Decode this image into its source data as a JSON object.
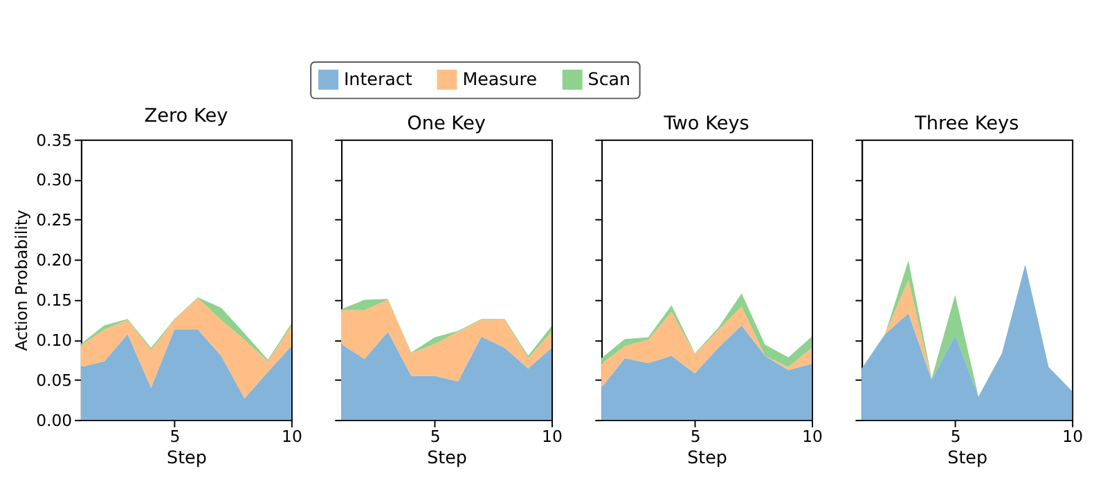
{
  "chart_data": [
    {
      "type": "area",
      "stacked": true,
      "title": "Zero Key",
      "xlabel": "Step",
      "ylabel": "Action Probability",
      "legend": "top",
      "grid": false,
      "x": [
        1,
        2,
        3,
        4,
        5,
        6,
        7,
        8,
        9,
        10
      ],
      "xlim": [
        1,
        10
      ],
      "xticks": [
        5,
        10
      ],
      "ylim": [
        0,
        0.35
      ],
      "yticks": [
        {
          "value": 0,
          "label": "0.00"
        },
        {
          "value": 0.05,
          "label": "0.05"
        },
        {
          "value": 0.1,
          "label": "0.10"
        },
        {
          "value": 0.15,
          "label": "0.15"
        },
        {
          "value": 0.2,
          "label": "0.20"
        },
        {
          "value": 0.25,
          "label": "0.25"
        },
        {
          "value": 0.3,
          "label": "0.30"
        },
        {
          "value": 0.35,
          "label": "0.35"
        }
      ],
      "series": [
        {
          "name": "Interact",
          "color": "#84b4d9",
          "values": [
            0.066,
            0.073,
            0.107,
            0.04,
            0.113,
            0.113,
            0.08,
            0.027,
            0.06,
            0.092
          ]
        },
        {
          "name": "Measure",
          "color": "#ffbe86",
          "values": [
            0.027,
            0.04,
            0.018,
            0.047,
            0.012,
            0.039,
            0.045,
            0.073,
            0.013,
            0.025
          ]
        },
        {
          "name": "Scan",
          "color": "#8fd18f",
          "values": [
            0.002,
            0.005,
            0.001,
            0.003,
            0.001,
            0.001,
            0.015,
            0.008,
            0.002,
            0.003
          ]
        }
      ]
    },
    {
      "type": "area",
      "stacked": true,
      "title": "One Key",
      "xlabel": "Step",
      "tick_labels": "x",
      "grid": false,
      "x": [
        1,
        2,
        3,
        4,
        5,
        6,
        7,
        8,
        9,
        10
      ],
      "xlim": [
        1,
        10
      ],
      "xticks": [
        5,
        10
      ],
      "ylim": [
        0,
        0.35
      ],
      "yticks": [
        {
          "value": 0,
          "label": null
        },
        {
          "value": 0.05,
          "label": null
        },
        {
          "value": 0.1,
          "label": null
        },
        {
          "value": 0.15,
          "label": null
        },
        {
          "value": 0.2,
          "label": null
        },
        {
          "value": 0.25,
          "label": null
        },
        {
          "value": 0.3,
          "label": null
        },
        {
          "value": 0.35,
          "label": null
        }
      ],
      "series": [
        {
          "name": "Interact",
          "color": "#84b4d9",
          "values": [
            0.095,
            0.076,
            0.11,
            0.055,
            0.055,
            0.048,
            0.104,
            0.09,
            0.064,
            0.09
          ]
        },
        {
          "name": "Measure",
          "color": "#ffbe86",
          "values": [
            0.042,
            0.061,
            0.04,
            0.028,
            0.04,
            0.062,
            0.021,
            0.035,
            0.013,
            0.02
          ]
        },
        {
          "name": "Scan",
          "color": "#8fd18f",
          "values": [
            0.001,
            0.013,
            0.001,
            0.001,
            0.008,
            0.001,
            0.001,
            0.001,
            0.003,
            0.007
          ]
        }
      ]
    },
    {
      "type": "area",
      "stacked": true,
      "title": "Two Keys",
      "xlabel": "Step",
      "tick_labels": "x",
      "grid": false,
      "x": [
        1,
        2,
        3,
        4,
        5,
        6,
        7,
        8,
        9,
        10
      ],
      "xlim": [
        1,
        10
      ],
      "xticks": [
        5,
        10
      ],
      "ylim": [
        0,
        0.35
      ],
      "yticks": [
        {
          "value": 0,
          "label": null
        },
        {
          "value": 0.05,
          "label": null
        },
        {
          "value": 0.1,
          "label": null
        },
        {
          "value": 0.15,
          "label": null
        },
        {
          "value": 0.2,
          "label": null
        },
        {
          "value": 0.25,
          "label": null
        },
        {
          "value": 0.3,
          "label": null
        },
        {
          "value": 0.35,
          "label": null
        }
      ],
      "series": [
        {
          "name": "Interact",
          "color": "#84b4d9",
          "values": [
            0.04,
            0.077,
            0.071,
            0.08,
            0.058,
            0.09,
            0.118,
            0.08,
            0.062,
            0.07
          ]
        },
        {
          "name": "Measure",
          "color": "#ffbe86",
          "values": [
            0.03,
            0.015,
            0.029,
            0.055,
            0.024,
            0.022,
            0.024,
            0.0,
            0.004,
            0.02
          ]
        },
        {
          "name": "Scan",
          "color": "#8fd18f",
          "values": [
            0.007,
            0.009,
            0.003,
            0.008,
            0.001,
            0.003,
            0.016,
            0.014,
            0.012,
            0.014
          ]
        }
      ]
    },
    {
      "type": "area",
      "stacked": true,
      "title": "Three Keys",
      "xlabel": "Step",
      "tick_labels": "x",
      "grid": false,
      "x": [
        1,
        2,
        3,
        4,
        5,
        6,
        7,
        8,
        9,
        10
      ],
      "xlim": [
        1,
        10
      ],
      "xticks": [
        5,
        10
      ],
      "ylim": [
        0,
        0.35
      ],
      "yticks": [
        {
          "value": 0,
          "label": null
        },
        {
          "value": 0.05,
          "label": null
        },
        {
          "value": 0.1,
          "label": null
        },
        {
          "value": 0.15,
          "label": null
        },
        {
          "value": 0.2,
          "label": null
        },
        {
          "value": 0.25,
          "label": null
        },
        {
          "value": 0.3,
          "label": null
        },
        {
          "value": 0.35,
          "label": null
        }
      ],
      "series": [
        {
          "name": "Interact",
          "color": "#84b4d9",
          "values": [
            0.064,
            0.107,
            0.133,
            0.05,
            0.106,
            0.029,
            0.083,
            0.194,
            0.066,
            0.036
          ]
        },
        {
          "name": "Measure",
          "color": "#ffbe86",
          "values": [
            0,
            0,
            0.042,
            0,
            0,
            0,
            0,
            0,
            0,
            0
          ]
        },
        {
          "name": "Scan",
          "color": "#8fd18f",
          "values": [
            0,
            0,
            0.024,
            0.002,
            0.05,
            0,
            0,
            0,
            0,
            0
          ]
        }
      ]
    }
  ]
}
